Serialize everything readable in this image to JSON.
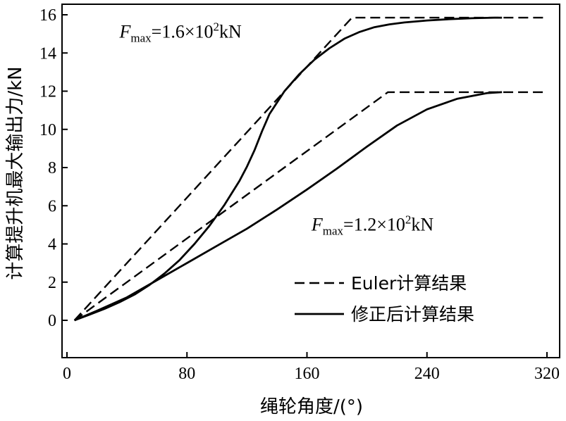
{
  "chart_data": {
    "type": "line",
    "xlabel": "绳轮角度/(°)",
    "ylabel": "计算提升机最大输出力/kN",
    "xlim": [
      0,
      320
    ],
    "ylim": [
      -1.5,
      16.5
    ],
    "xticks": [
      0,
      80,
      160,
      240,
      320
    ],
    "yticks": [
      0,
      2,
      4,
      6,
      8,
      10,
      12,
      14,
      16
    ],
    "grid": false,
    "legend": {
      "position": "bottom-right",
      "entries": [
        {
          "label": "Euler计算结果",
          "style": "dashed"
        },
        {
          "label": "修正后计算结果",
          "style": "solid"
        }
      ]
    },
    "annotations": [
      {
        "prefix": "F",
        "subscript": "max",
        "body": "=1.6×10",
        "superscript": "2",
        "unit": "kN",
        "x": 35,
        "y": 14.8
      },
      {
        "prefix": "F",
        "subscript": "max",
        "body": "=1.2×10",
        "superscript": "2",
        "unit": "kN",
        "x": 163,
        "y": 4.7
      }
    ],
    "series": [
      {
        "group": "Fmax=1.6",
        "style": "dashed",
        "x": [
          5,
          190,
          318
        ],
        "y": [
          0,
          15.85,
          15.85
        ]
      },
      {
        "group": "Fmax=1.6",
        "style": "solid",
        "x": [
          5,
          15,
          25,
          35,
          45,
          55,
          65,
          75,
          85,
          95,
          105,
          115,
          120,
          125,
          130,
          135,
          145,
          155,
          165,
          175,
          185,
          195,
          205,
          215,
          225,
          240,
          255,
          270,
          285,
          290
        ],
        "y": [
          0,
          0.3,
          0.6,
          0.95,
          1.35,
          1.85,
          2.45,
          3.15,
          4.0,
          4.95,
          6.05,
          7.3,
          8.05,
          8.9,
          9.9,
          10.8,
          12.0,
          12.9,
          13.65,
          14.25,
          14.75,
          15.1,
          15.35,
          15.5,
          15.6,
          15.7,
          15.77,
          15.82,
          15.85,
          15.85
        ]
      },
      {
        "group": "Fmax=1.2",
        "style": "dashed",
        "x": [
          5,
          214,
          318
        ],
        "y": [
          0,
          11.95,
          11.95
        ]
      },
      {
        "group": "Fmax=1.2",
        "style": "solid",
        "x": [
          5,
          20,
          40,
          60,
          80,
          100,
          120,
          140,
          160,
          180,
          200,
          220,
          240,
          260,
          280,
          290
        ],
        "y": [
          0,
          0.5,
          1.2,
          2.1,
          3.0,
          3.9,
          4.8,
          5.8,
          6.85,
          7.95,
          9.1,
          10.2,
          11.05,
          11.6,
          11.9,
          11.95
        ]
      }
    ]
  }
}
